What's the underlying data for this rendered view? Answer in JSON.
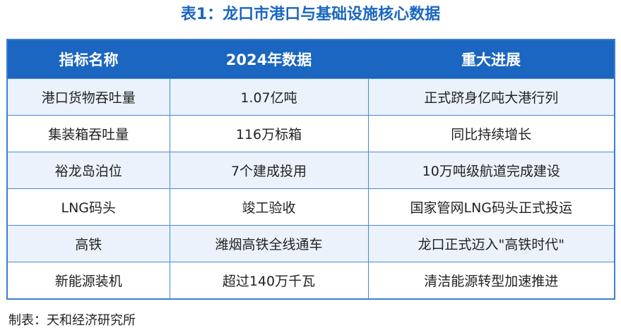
{
  "title": "表1：龙口市港口与基础设施核心数据",
  "table": {
    "headers": [
      "指标名称",
      "2024年数据",
      "重大进展"
    ],
    "rows": [
      [
        "港口货物吞吐量",
        "1.07亿吨",
        "正式跻身亿吨大港行列"
      ],
      [
        "集装箱吞吐量",
        "116万标箱",
        "同比持续增长"
      ],
      [
        "裕龙岛泊位",
        "7个建成投用",
        "10万吨级航道完成建设"
      ],
      [
        "LNG码头",
        "竣工验收",
        "国家管网LNG码头正式投运"
      ],
      [
        "高铁",
        "潍烟高铁全线通车",
        "龙口正式迈入\"高铁时代\""
      ],
      [
        "新能源装机",
        "超过140万千瓦",
        "清洁能源转型加速推进"
      ]
    ]
  },
  "footer": "制表：天和经济研究所",
  "colors": {
    "accent": "#1a66c0",
    "row_alt": "#ebf2fc",
    "border": "#4a88d6"
  }
}
